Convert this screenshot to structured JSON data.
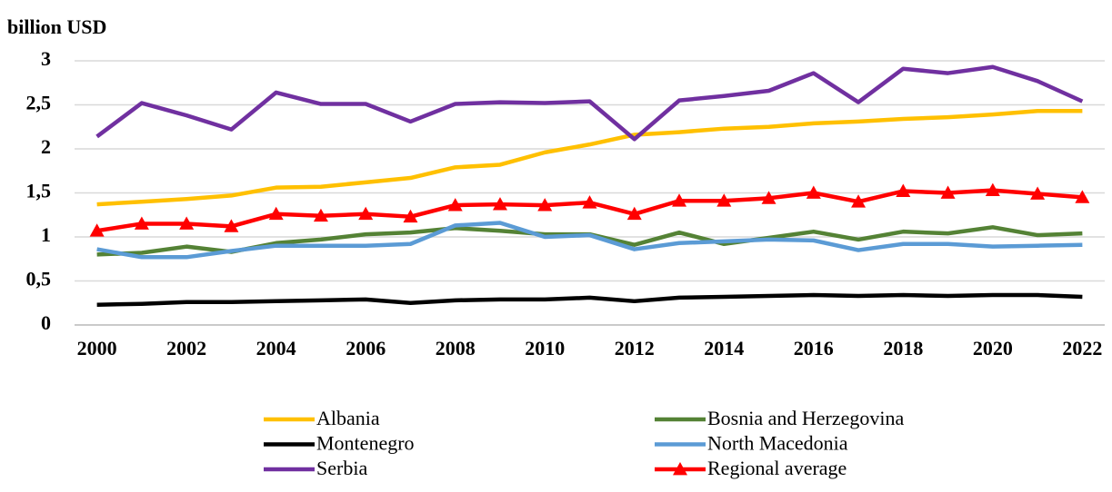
{
  "chart_data": {
    "type": "line",
    "y_label": "billion USD",
    "x": [
      2000,
      2001,
      2002,
      2003,
      2004,
      2005,
      2006,
      2007,
      2008,
      2009,
      2010,
      2011,
      2012,
      2013,
      2014,
      2015,
      2016,
      2017,
      2018,
      2019,
      2020,
      2021,
      2022
    ],
    "xlim": [
      1999.5,
      2022.5
    ],
    "xticks": [
      2000,
      2002,
      2004,
      2006,
      2008,
      2010,
      2012,
      2014,
      2016,
      2018,
      2020,
      2022
    ],
    "ylim": [
      0,
      3
    ],
    "yticks": [
      0,
      {
        "value": 0.5,
        "label": "0,5"
      },
      1,
      {
        "value": 1.5,
        "label": "1,5"
      },
      2,
      {
        "value": 2.5,
        "label": "2,5"
      },
      3
    ],
    "grid": true,
    "legend": "bottom",
    "series": [
      {
        "name": "Albania",
        "color": "#FFC000",
        "values": [
          1.37,
          1.4,
          1.43,
          1.47,
          1.56,
          1.57,
          1.62,
          1.67,
          1.79,
          1.82,
          1.96,
          2.05,
          2.16,
          2.19,
          2.23,
          2.25,
          2.29,
          2.31,
          2.34,
          2.36,
          2.39,
          2.43,
          2.43
        ]
      },
      {
        "name": "Bosnia and Herzegovina",
        "color": "#548235",
        "values": [
          0.8,
          0.82,
          0.89,
          0.83,
          0.93,
          0.97,
          1.03,
          1.05,
          1.1,
          1.07,
          1.03,
          1.03,
          0.91,
          1.05,
          0.92,
          0.99,
          1.06,
          0.97,
          1.06,
          1.04,
          1.11,
          1.02,
          1.04
        ]
      },
      {
        "name": "Montenegro",
        "color": "#000000",
        "values": [
          0.23,
          0.24,
          0.26,
          0.26,
          0.27,
          0.28,
          0.29,
          0.25,
          0.28,
          0.29,
          0.29,
          0.31,
          0.27,
          0.31,
          0.32,
          0.33,
          0.34,
          0.33,
          0.34,
          0.33,
          0.34,
          0.34,
          0.32
        ]
      },
      {
        "name": "North Macedonia",
        "color": "#5B9BD5",
        "values": [
          0.86,
          0.77,
          0.77,
          0.84,
          0.9,
          0.9,
          0.9,
          0.92,
          1.13,
          1.16,
          1.0,
          1.02,
          0.86,
          0.93,
          0.95,
          0.97,
          0.96,
          0.85,
          0.92,
          0.92,
          0.89,
          0.9,
          0.91
        ]
      },
      {
        "name": "Serbia",
        "color": "#7030A0",
        "values": [
          2.14,
          2.52,
          2.38,
          2.22,
          2.64,
          2.51,
          2.51,
          2.31,
          2.51,
          2.53,
          2.52,
          2.54,
          2.11,
          2.55,
          2.6,
          2.66,
          2.86,
          2.53,
          2.91,
          2.86,
          2.93,
          2.77,
          2.54
        ]
      },
      {
        "name": "Regional average",
        "color": "#FF0000",
        "marker": "triangle",
        "values": [
          1.07,
          1.15,
          1.15,
          1.12,
          1.26,
          1.24,
          1.26,
          1.23,
          1.36,
          1.37,
          1.36,
          1.39,
          1.26,
          1.41,
          1.41,
          1.44,
          1.5,
          1.4,
          1.52,
          1.5,
          1.53,
          1.49,
          1.45
        ]
      }
    ]
  }
}
